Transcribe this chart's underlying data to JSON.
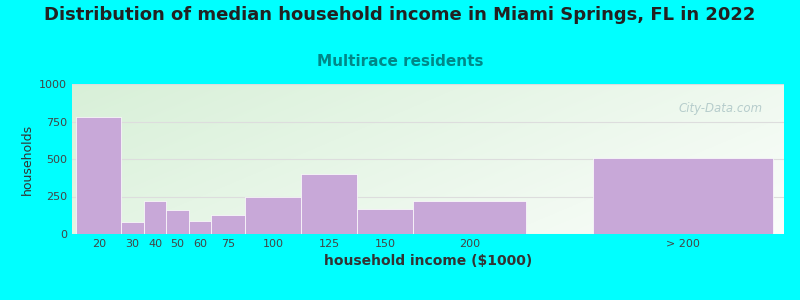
{
  "title": "Distribution of median household income in Miami Springs, FL in 2022",
  "subtitle": "Multirace residents",
  "xlabel": "household income ($1000)",
  "ylabel": "households",
  "background_color": "#00FFFF",
  "bar_color": "#c8a8d8",
  "categories": [
    "20",
    "30",
    "40",
    "50",
    "60",
    "75",
    "100",
    "125",
    "150",
    "200",
    "> 200"
  ],
  "values": [
    780,
    80,
    220,
    160,
    90,
    130,
    250,
    400,
    170,
    220,
    510
  ],
  "lefts": [
    0,
    20,
    30,
    40,
    50,
    60,
    75,
    100,
    125,
    150,
    230
  ],
  "rights": [
    20,
    30,
    40,
    50,
    60,
    75,
    100,
    125,
    150,
    200,
    310
  ],
  "ylim": [
    0,
    1000
  ],
  "yticks": [
    0,
    250,
    500,
    750,
    1000
  ],
  "xlim_min": -2,
  "xlim_max": 315,
  "title_fontsize": 13,
  "subtitle_fontsize": 11,
  "subtitle_color": "#008888",
  "ylabel_fontsize": 9,
  "xlabel_fontsize": 10,
  "tick_fontsize": 8,
  "watermark_text": "City-Data.com",
  "watermark_color": "#b0c8c8",
  "gradient_colors": [
    "#e8f5e0",
    "#f8fff8",
    "#ffffff"
  ],
  "gridline_color": "#dddddd"
}
